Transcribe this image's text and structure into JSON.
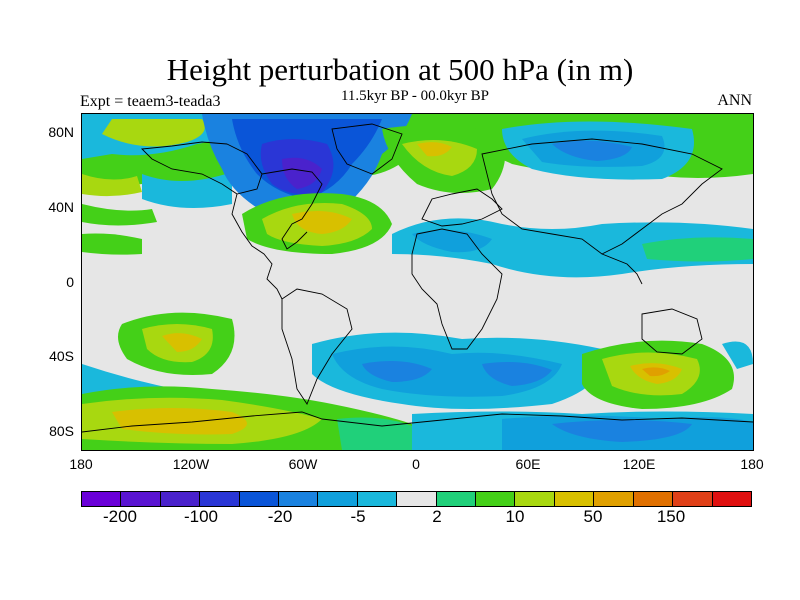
{
  "title": "Height perturbation at 500 hPa (in m)",
  "subtitle": "11.5kyr BP - 00.0kyr BP",
  "experiment_label": "Expt = teaem3-teada3",
  "season_label": "ANN",
  "colors": {
    "background": "#e6e6e6",
    "coastline": "#000000"
  },
  "chart_data": {
    "type": "heatmap",
    "title": "Height perturbation at 500 hPa (in m)",
    "subtitle": "11.5kyr BP - 00.0kyr BP",
    "variable": "500 hPa geopotential height perturbation",
    "units": "m",
    "projection": "cylindrical equidistant",
    "xlim": [
      -180,
      180
    ],
    "ylim": [
      -90,
      90
    ],
    "x_ticks": [
      "180",
      "120W",
      "60W",
      "0",
      "60E",
      "120E",
      "180"
    ],
    "y_ticks": [
      "80N",
      "40N",
      "0",
      "40S",
      "80S"
    ],
    "colorbar": {
      "bounds": [
        -500,
        -200,
        -150,
        -100,
        -50,
        -20,
        -10,
        -5,
        -2,
        2,
        5,
        10,
        20,
        50,
        100,
        150,
        200,
        500
      ],
      "labels": [
        "-200",
        "-100",
        "-20",
        "-5",
        "2",
        "10",
        "50",
        "150"
      ],
      "colors": [
        "#6a00d8",
        "#5a14d2",
        "#4a22cc",
        "#2a36d6",
        "#0a55d8",
        "#1a82e0",
        "#10a0dc",
        "#1ab8dc",
        "#e6e6e6",
        "#20d07a",
        "#44d018",
        "#a8d810",
        "#d8c000",
        "#e0a000",
        "#e07000",
        "#e04018",
        "#e01010"
      ]
    },
    "features": [
      {
        "name": "North America low",
        "center": [
          -95,
          62
        ],
        "value_range": [
          -100,
          -50
        ]
      },
      {
        "name": "North Atlantic high",
        "center": [
          -45,
          38
        ],
        "value_range": [
          20,
          50
        ]
      },
      {
        "name": "Siberian low",
        "center": [
          100,
          72
        ],
        "value_range": [
          -20,
          -5
        ]
      },
      {
        "name": "Europe high",
        "center": [
          20,
          58
        ],
        "value_range": [
          10,
          20
        ]
      },
      {
        "name": "South Pacific high",
        "center": [
          -140,
          -33
        ],
        "value_range": [
          10,
          20
        ]
      },
      {
        "name": "Southern Indian Ocean low",
        "center": [
          40,
          -45
        ],
        "value_range": [
          -20,
          -10
        ]
      },
      {
        "name": "South Pacific high east",
        "center": [
          132,
          -49
        ],
        "value_range": [
          20,
          50
        ]
      },
      {
        "name": "Antarctic high",
        "center": [
          -120,
          -82
        ],
        "value_range": [
          10,
          20
        ]
      },
      {
        "name": "Antarctic low",
        "center": [
          140,
          -84
        ],
        "value_range": [
          -20,
          -10
        ]
      }
    ]
  }
}
